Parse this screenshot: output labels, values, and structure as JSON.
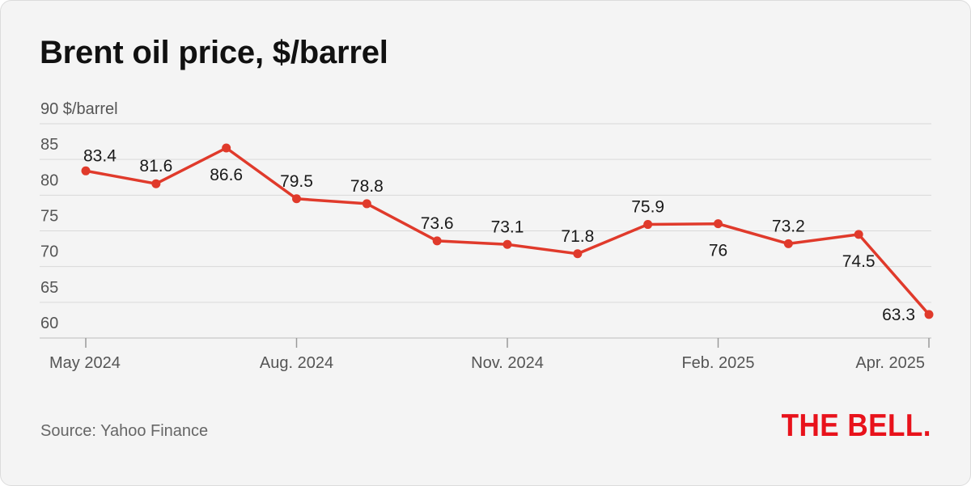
{
  "title": "Brent oil price, $/barrel",
  "source": "Source: Yahoo Finance",
  "brand": "THE BELL.",
  "colors": {
    "line": "#e03a2b",
    "brand": "#e8121b",
    "grid": "#d9d9d9",
    "background": "#f4f4f4"
  },
  "chart_data": {
    "type": "line",
    "title": "Brent oil price, $/barrel",
    "ylabel": "$/barrel",
    "ylim": [
      60,
      90
    ],
    "y_ticks": [
      60,
      65,
      70,
      75,
      80,
      85,
      90
    ],
    "y_tick_labels": [
      "60",
      "65",
      "70",
      "75",
      "80",
      "85",
      "90 $/barrel"
    ],
    "x_tick_labels": [
      "May 2024",
      "Aug. 2024",
      "Nov. 2024",
      "Feb. 2025",
      "Apr. 2025"
    ],
    "x_tick_indices": [
      0,
      3,
      6,
      9,
      12
    ],
    "grid": true,
    "series": [
      {
        "values": [
          83.4,
          81.6,
          86.6,
          79.5,
          78.8,
          73.6,
          73.1,
          71.8,
          75.9,
          76,
          73.2,
          74.5,
          63.3
        ],
        "labels": [
          "83.4",
          "81.6",
          "86.6",
          "79.5",
          "78.8",
          "73.6",
          "73.1",
          "71.8",
          "75.9",
          "76",
          "73.2",
          "74.5",
          "63.3"
        ]
      }
    ]
  }
}
